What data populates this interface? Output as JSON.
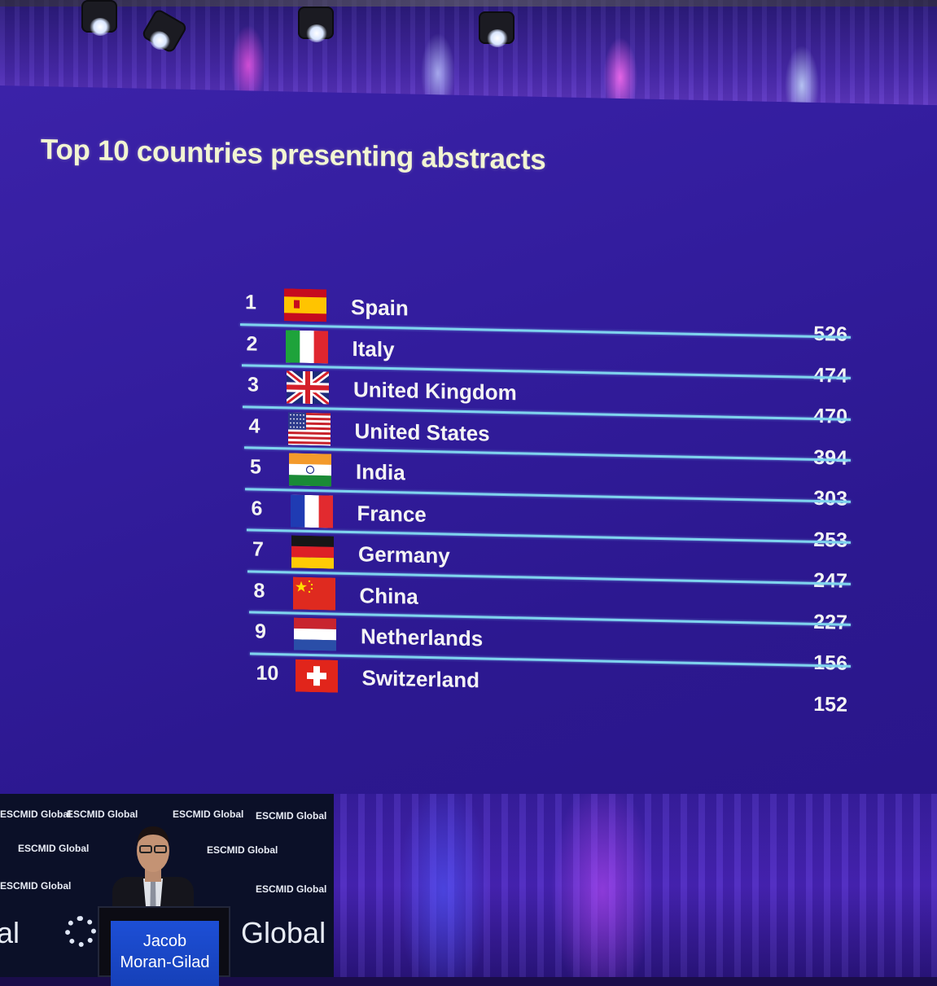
{
  "slide": {
    "title": "Top 10 countries presenting abstracts",
    "rows": [
      {
        "rank": "1",
        "country": "Spain",
        "count": "526",
        "flag": "spain-flag-icon"
      },
      {
        "rank": "2",
        "country": "Italy",
        "count": "474",
        "flag": "italy-flag-icon"
      },
      {
        "rank": "3",
        "country": "United Kingdom",
        "count": "470",
        "flag": "uk-flag-icon"
      },
      {
        "rank": "4",
        "country": "United States",
        "count": "394",
        "flag": "usa-flag-icon"
      },
      {
        "rank": "5",
        "country": "India",
        "count": "303",
        "flag": "india-flag-icon"
      },
      {
        "rank": "6",
        "country": "France",
        "count": "253",
        "flag": "france-flag-icon"
      },
      {
        "rank": "7",
        "country": "Germany",
        "count": "247",
        "flag": "germany-flag-icon"
      },
      {
        "rank": "8",
        "country": "China",
        "count": "227",
        "flag": "china-flag-icon"
      },
      {
        "rank": "9",
        "country": "Netherlands",
        "count": "156",
        "flag": "netherlands-flag-icon"
      },
      {
        "rank": "10",
        "country": "Switzerland",
        "count": "152",
        "flag": "switzerland-flag-icon"
      }
    ]
  },
  "stage": {
    "brand_text": "ESCMID Global",
    "brand_big": "Global",
    "brand_big_left": "al",
    "podium_name_line1": "Jacob",
    "podium_name_line2": "Moran-Gilad"
  },
  "colors": {
    "screen_bg": "#331d9e",
    "title": "#f2f5d2",
    "row_line": "#7fd4ee",
    "podium_screen": "#1d4fd6"
  }
}
